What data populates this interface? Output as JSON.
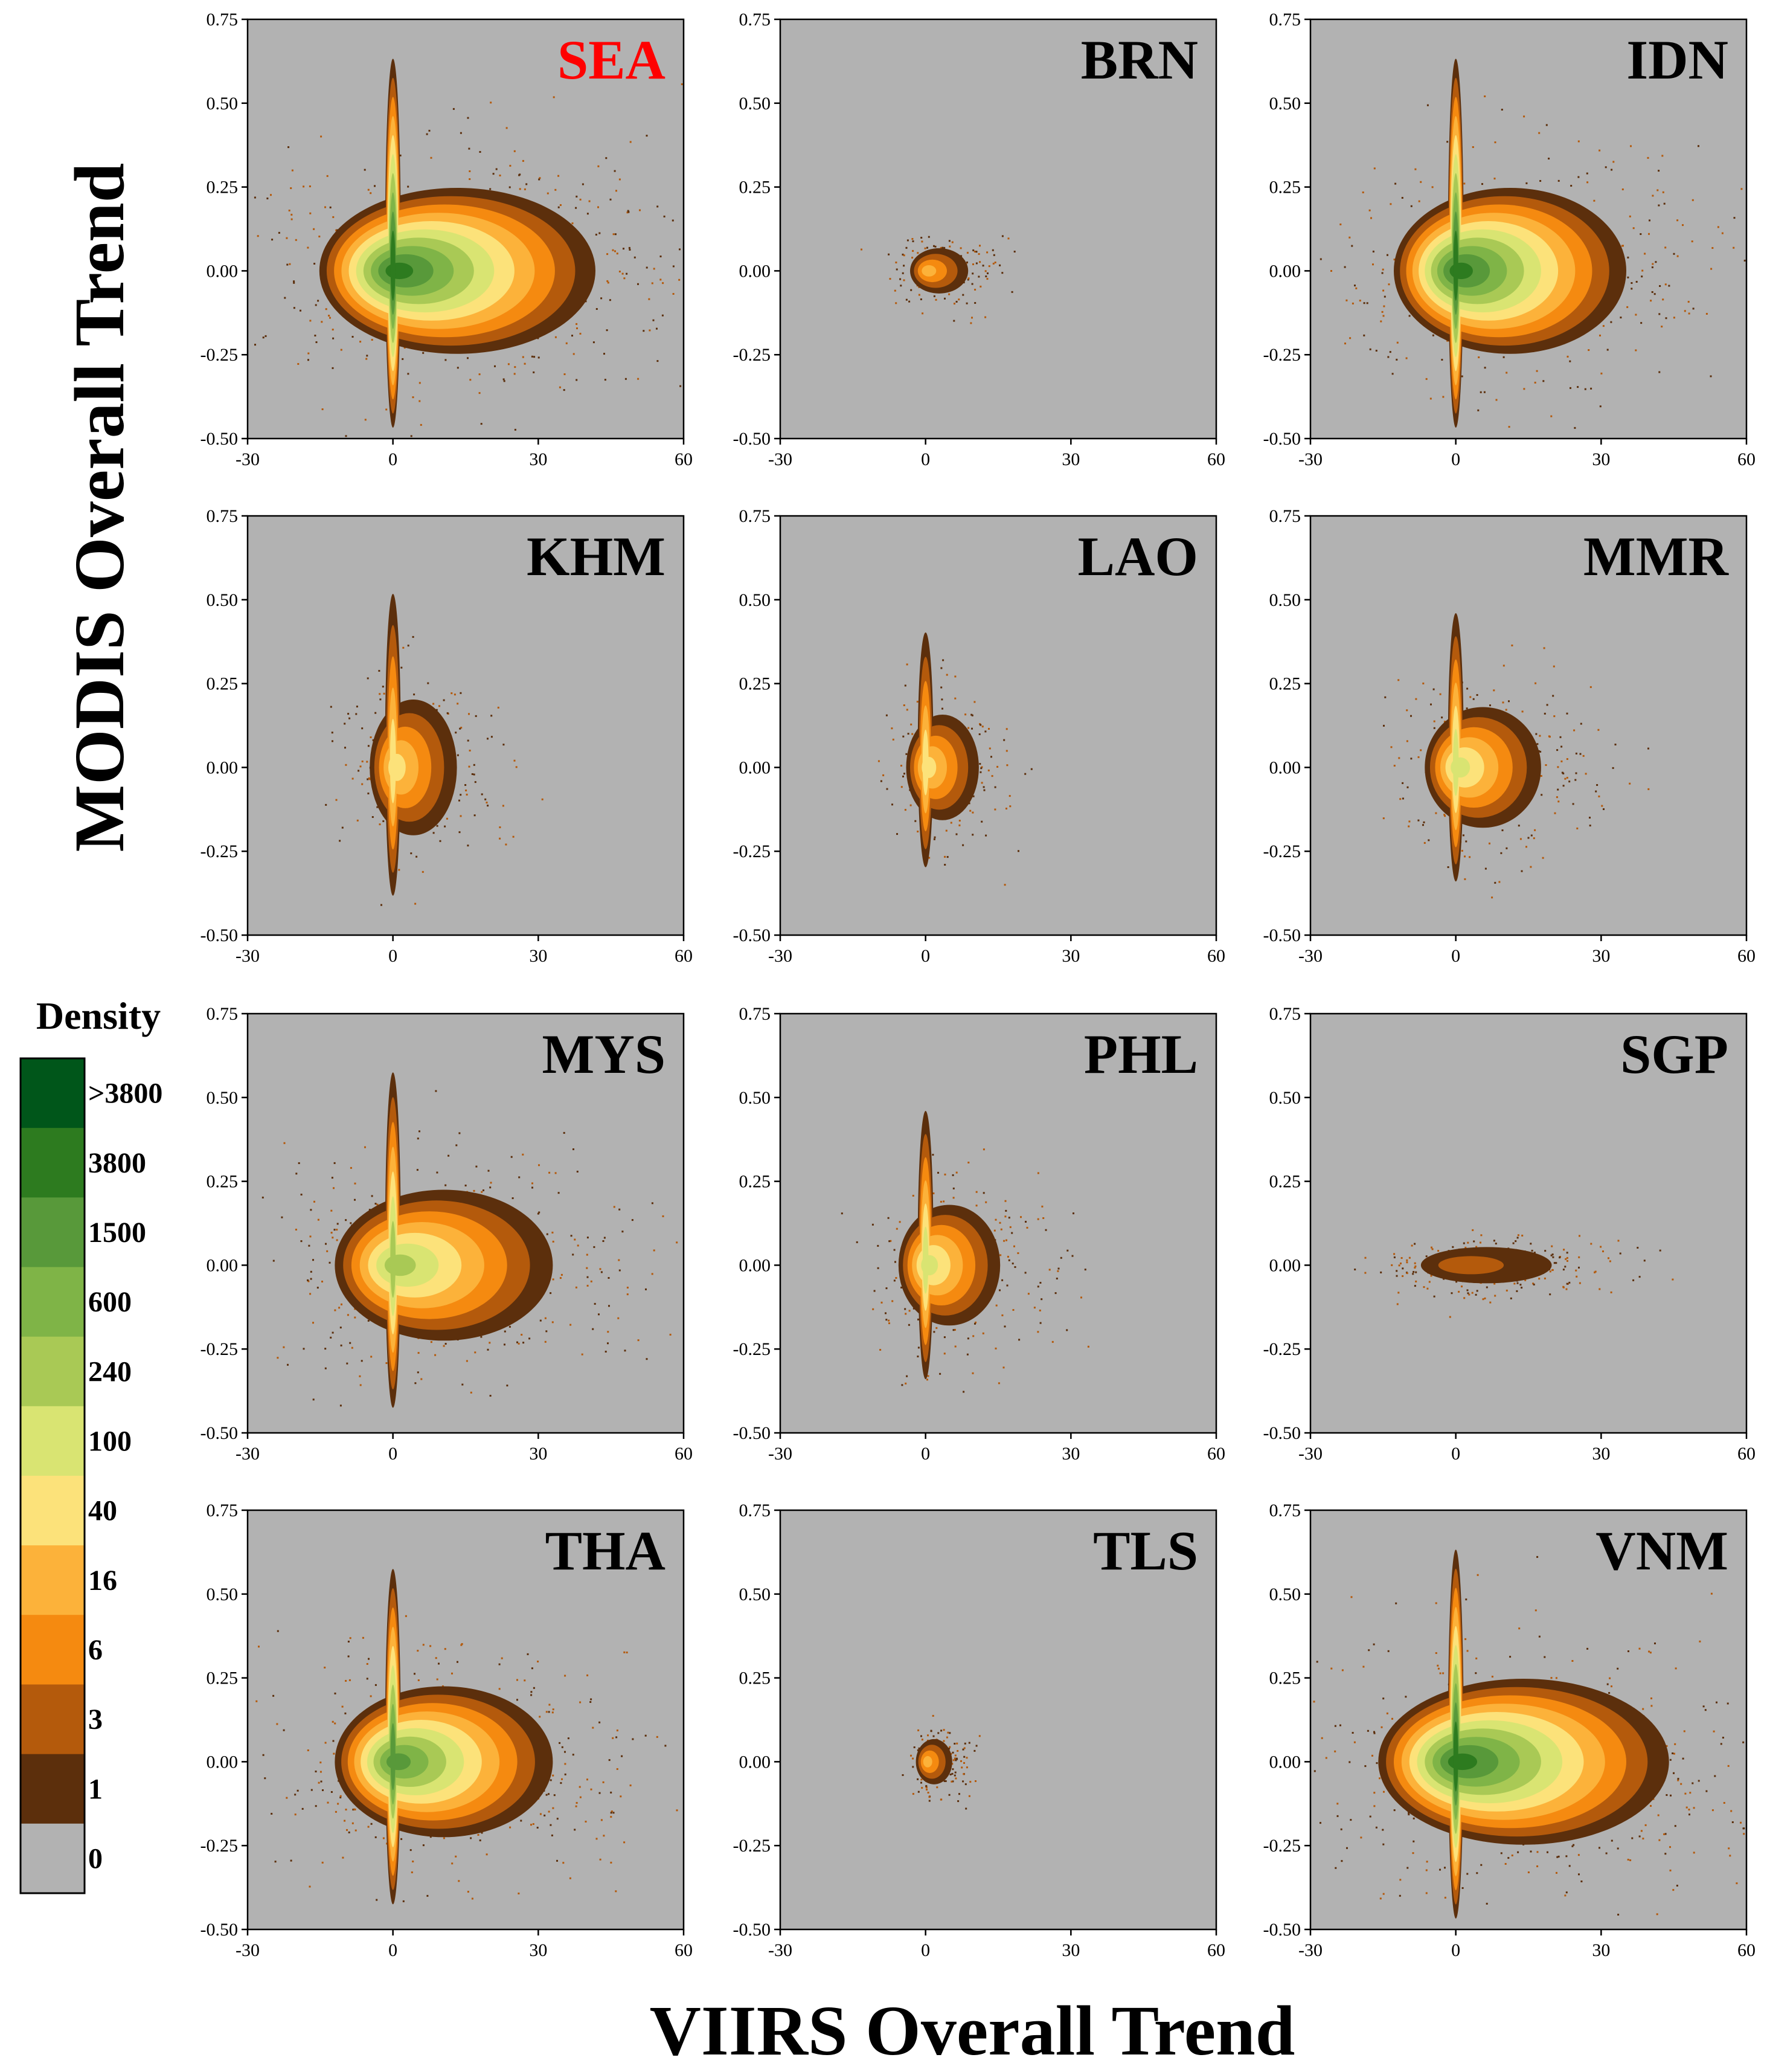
{
  "figure": {
    "ylabel": "MODIS Overall Trend",
    "xlabel": "VIIRS Overall Trend",
    "legend_title": "Density"
  },
  "chart_data": {
    "type": "heatmap",
    "xlabel": "VIIRS Overall Trend",
    "ylabel": "MODIS Overall Trend",
    "xlim": [
      -30,
      60
    ],
    "ylim": [
      -0.5,
      0.75
    ],
    "xticks": [
      -30,
      0,
      30,
      60
    ],
    "yticks": [
      -0.5,
      -0.25,
      0.0,
      0.25,
      0.5,
      0.75
    ],
    "xtick_labels": [
      "-30",
      "0",
      "30",
      "60"
    ],
    "ytick_labels": [
      "-0.50",
      "-0.25",
      "0.00",
      "0.25",
      "0.50",
      "0.75"
    ],
    "legend": {
      "title": "Density",
      "levels": [
        ">3800",
        "3800",
        "1500",
        "600",
        "240",
        "100",
        "40",
        "16",
        "6",
        "3",
        "1",
        "0"
      ],
      "colors": [
        "#00561a",
        "#2d7b1f",
        "#58993a",
        "#7fb447",
        "#a9c955",
        "#d9e472",
        "#fce27a",
        "#fcb23a",
        "#f58a10",
        "#b45a0c",
        "#5c2f0c",
        "#b2b2b2"
      ]
    },
    "panels": [
      {
        "name": "SEA",
        "title_color": "#ff0000",
        "peak_density": ">3800",
        "x_spread": 38,
        "y_spread": 0.55,
        "vertical_arm": true
      },
      {
        "name": "BRN",
        "title_color": "#000000",
        "peak_density": "40",
        "x_spread": 8,
        "y_spread": 0.15,
        "vertical_arm": false
      },
      {
        "name": "IDN",
        "title_color": "#000000",
        "peak_density": ">3800",
        "x_spread": 32,
        "y_spread": 0.55,
        "vertical_arm": true
      },
      {
        "name": "KHM",
        "title_color": "#000000",
        "peak_density": "100",
        "x_spread": 12,
        "y_spread": 0.45,
        "vertical_arm": true
      },
      {
        "name": "LAO",
        "title_color": "#000000",
        "peak_density": "100",
        "x_spread": 10,
        "y_spread": 0.35,
        "vertical_arm": true
      },
      {
        "name": "MMR",
        "title_color": "#000000",
        "peak_density": "240",
        "x_spread": 16,
        "y_spread": 0.4,
        "vertical_arm": true
      },
      {
        "name": "MYS",
        "title_color": "#000000",
        "peak_density": "600",
        "x_spread": 30,
        "y_spread": 0.5,
        "vertical_arm": true
      },
      {
        "name": "PHL",
        "title_color": "#000000",
        "peak_density": "240",
        "x_spread": 14,
        "y_spread": 0.4,
        "vertical_arm": true
      },
      {
        "name": "SGP",
        "title_color": "#000000",
        "peak_density": "6",
        "x_spread": 18,
        "y_spread": 0.12,
        "vertical_arm": false
      },
      {
        "name": "THA",
        "title_color": "#000000",
        "peak_density": "3800",
        "x_spread": 30,
        "y_spread": 0.5,
        "vertical_arm": true
      },
      {
        "name": "TLS",
        "title_color": "#000000",
        "peak_density": "40",
        "x_spread": 5,
        "y_spread": 0.15,
        "vertical_arm": false
      },
      {
        "name": "VNM",
        "title_color": "#000000",
        "peak_density": ">3800",
        "x_spread": 40,
        "y_spread": 0.55,
        "vertical_arm": true
      }
    ]
  }
}
